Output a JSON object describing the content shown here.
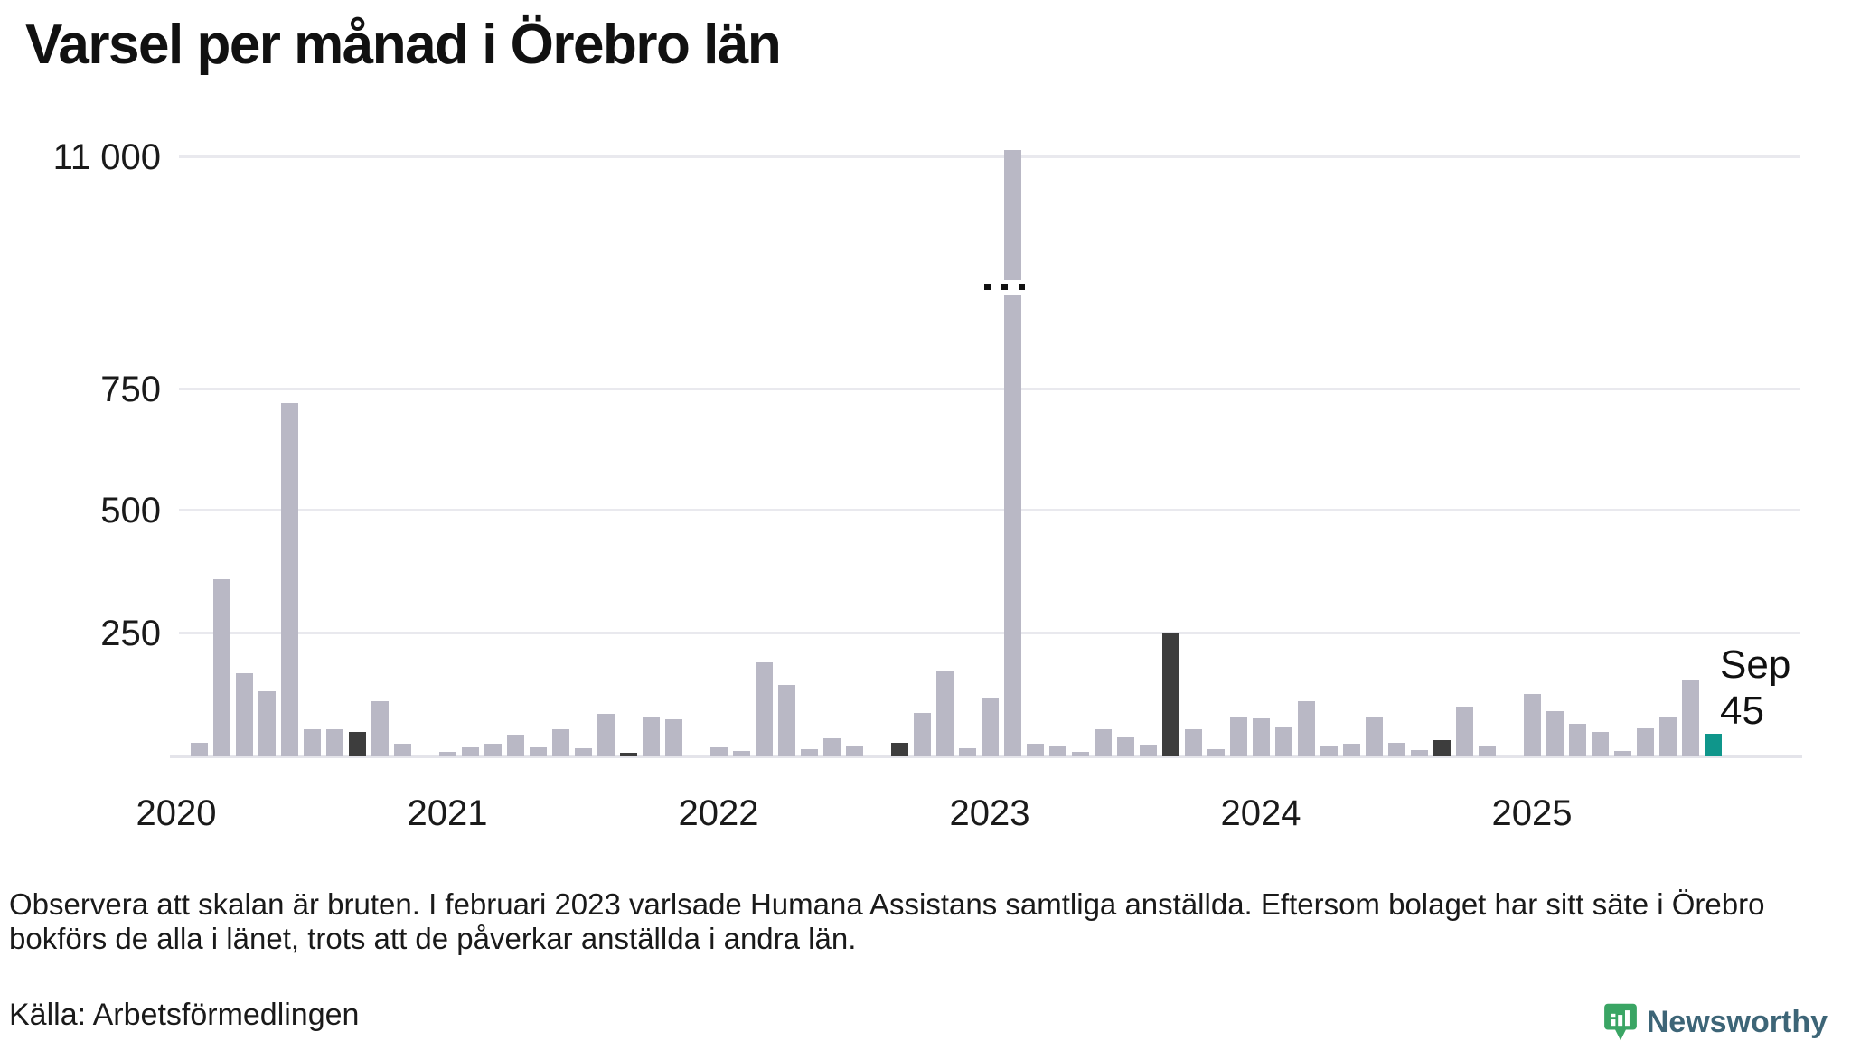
{
  "title": "Varsel per månad i Örebro län",
  "y_axis": {
    "tick_labels": [
      "11 000",
      "750",
      "500",
      "250"
    ],
    "tick_values": [
      11000,
      750,
      500,
      250
    ]
  },
  "x_axis": {
    "year_labels": [
      "2020",
      "2021",
      "2022",
      "2023",
      "2024",
      "2025"
    ]
  },
  "annotation": {
    "month": "Sep",
    "value": "45"
  },
  "notes": {
    "scale_note": "Observera att skalan är bruten. I februari 2023 varlsade Humana Assistans samtliga anställda. Eftersom bolaget har sitt säte i Örebro bokförs de alla i länet, trots att de påverkar anställda i andra län.",
    "source": "Källa: Arbetsförmedlingen"
  },
  "branding": {
    "name": "Newsworthy"
  },
  "colors": {
    "bar_default": "#b9b8c5",
    "bar_september": "#3d3d3d",
    "bar_current": "#0f968b",
    "gridline": "#e9e9ee",
    "baseline": "#e4e4ea",
    "logo_green": "#3aa564",
    "logo_text": "#3d6577"
  },
  "chart_data": {
    "type": "bar",
    "title": "Varsel per månad i Örebro län",
    "ylabel": "",
    "xlabel": "",
    "axis_break": {
      "broken": true,
      "label_above_break": "11 000",
      "break_marker": "three dots"
    },
    "legend": "dark bars = september previous years, teal bar = current month (Sep 2025)",
    "series": [
      {
        "month": "2020-01",
        "value": 0,
        "style": "default"
      },
      {
        "month": "2020-02",
        "value": 27,
        "style": "default"
      },
      {
        "month": "2020-03",
        "value": 358,
        "style": "default"
      },
      {
        "month": "2020-04",
        "value": 168,
        "style": "default"
      },
      {
        "month": "2020-05",
        "value": 131,
        "style": "default"
      },
      {
        "month": "2020-06",
        "value": 713,
        "style": "default"
      },
      {
        "month": "2020-07",
        "value": 54,
        "style": "default"
      },
      {
        "month": "2020-08",
        "value": 54,
        "style": "default"
      },
      {
        "month": "2020-09",
        "value": 50,
        "style": "september"
      },
      {
        "month": "2020-10",
        "value": 111,
        "style": "default"
      },
      {
        "month": "2020-11",
        "value": 26,
        "style": "default"
      },
      {
        "month": "2020-12",
        "value": 0,
        "style": "default"
      },
      {
        "month": "2021-01",
        "value": 10,
        "style": "default"
      },
      {
        "month": "2021-02",
        "value": 18,
        "style": "default"
      },
      {
        "month": "2021-03",
        "value": 26,
        "style": "default"
      },
      {
        "month": "2021-04",
        "value": 43,
        "style": "default"
      },
      {
        "month": "2021-05",
        "value": 18,
        "style": "default"
      },
      {
        "month": "2021-06",
        "value": 54,
        "style": "default"
      },
      {
        "month": "2021-07",
        "value": 17,
        "style": "default"
      },
      {
        "month": "2021-08",
        "value": 86,
        "style": "default"
      },
      {
        "month": "2021-09",
        "value": 8,
        "style": "september"
      },
      {
        "month": "2021-10",
        "value": 78,
        "style": "default"
      },
      {
        "month": "2021-11",
        "value": 75,
        "style": "default"
      },
      {
        "month": "2021-12",
        "value": 0,
        "style": "default"
      },
      {
        "month": "2022-01",
        "value": 19,
        "style": "default"
      },
      {
        "month": "2022-02",
        "value": 11,
        "style": "default"
      },
      {
        "month": "2022-03",
        "value": 190,
        "style": "default"
      },
      {
        "month": "2022-04",
        "value": 145,
        "style": "default"
      },
      {
        "month": "2022-05",
        "value": 15,
        "style": "default"
      },
      {
        "month": "2022-06",
        "value": 36,
        "style": "default"
      },
      {
        "month": "2022-07",
        "value": 22,
        "style": "default"
      },
      {
        "month": "2022-08",
        "value": 0,
        "style": "default"
      },
      {
        "month": "2022-09",
        "value": 27,
        "style": "september"
      },
      {
        "month": "2022-10",
        "value": 87,
        "style": "default"
      },
      {
        "month": "2022-11",
        "value": 172,
        "style": "default"
      },
      {
        "month": "2022-12",
        "value": 17,
        "style": "default"
      },
      {
        "month": "2023-01",
        "value": 118,
        "style": "default"
      },
      {
        "month": "2023-02",
        "value": 11200,
        "style": "default",
        "break": true
      },
      {
        "month": "2023-03",
        "value": 26,
        "style": "default"
      },
      {
        "month": "2023-04",
        "value": 20,
        "style": "default"
      },
      {
        "month": "2023-05",
        "value": 9,
        "style": "default"
      },
      {
        "month": "2023-06",
        "value": 55,
        "style": "default"
      },
      {
        "month": "2023-07",
        "value": 39,
        "style": "default"
      },
      {
        "month": "2023-08",
        "value": 24,
        "style": "default"
      },
      {
        "month": "2023-09",
        "value": 250,
        "style": "september"
      },
      {
        "month": "2023-10",
        "value": 55,
        "style": "default"
      },
      {
        "month": "2023-11",
        "value": 14,
        "style": "default"
      },
      {
        "month": "2023-12",
        "value": 78,
        "style": "default"
      },
      {
        "month": "2024-01",
        "value": 77,
        "style": "default"
      },
      {
        "month": "2024-02",
        "value": 59,
        "style": "default"
      },
      {
        "month": "2024-03",
        "value": 112,
        "style": "default"
      },
      {
        "month": "2024-04",
        "value": 22,
        "style": "default"
      },
      {
        "month": "2024-05",
        "value": 26,
        "style": "default"
      },
      {
        "month": "2024-06",
        "value": 80,
        "style": "default"
      },
      {
        "month": "2024-07",
        "value": 27,
        "style": "default"
      },
      {
        "month": "2024-08",
        "value": 13,
        "style": "default"
      },
      {
        "month": "2024-09",
        "value": 33,
        "style": "september"
      },
      {
        "month": "2024-10",
        "value": 101,
        "style": "default"
      },
      {
        "month": "2024-11",
        "value": 22,
        "style": "default"
      },
      {
        "month": "2024-12",
        "value": 0,
        "style": "default"
      },
      {
        "month": "2025-01",
        "value": 125,
        "style": "default"
      },
      {
        "month": "2025-02",
        "value": 92,
        "style": "default"
      },
      {
        "month": "2025-03",
        "value": 65,
        "style": "default"
      },
      {
        "month": "2025-04",
        "value": 50,
        "style": "default"
      },
      {
        "month": "2025-05",
        "value": 11,
        "style": "default"
      },
      {
        "month": "2025-06",
        "value": 56,
        "style": "default"
      },
      {
        "month": "2025-07",
        "value": 78,
        "style": "default"
      },
      {
        "month": "2025-08",
        "value": 155,
        "style": "default"
      },
      {
        "month": "2025-09",
        "value": 45,
        "style": "current"
      }
    ]
  }
}
